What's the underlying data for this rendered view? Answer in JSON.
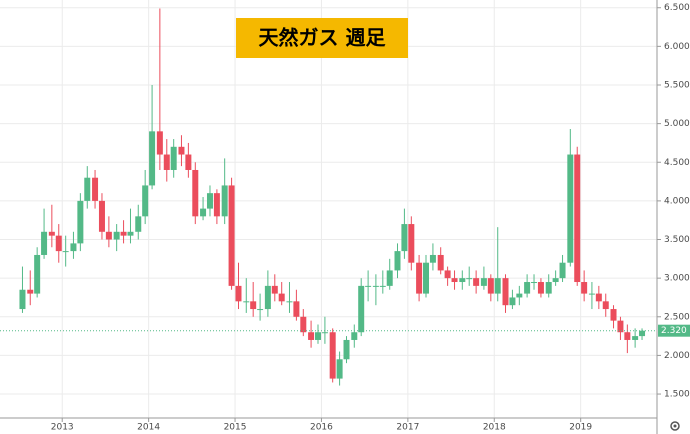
{
  "chart_data": {
    "type": "candlestick",
    "title": "天然ガス 週足",
    "x": [
      2012.54,
      2012.63,
      2012.71,
      2012.79,
      2012.88,
      2012.96,
      2013.04,
      2013.13,
      2013.21,
      2013.29,
      2013.38,
      2013.46,
      2013.54,
      2013.63,
      2013.71,
      2013.79,
      2013.88,
      2013.96,
      2014.04,
      2014.13,
      2014.21,
      2014.29,
      2014.38,
      2014.46,
      2014.54,
      2014.63,
      2014.71,
      2014.79,
      2014.88,
      2014.96,
      2015.04,
      2015.13,
      2015.21,
      2015.29,
      2015.38,
      2015.46,
      2015.54,
      2015.63,
      2015.71,
      2015.79,
      2015.88,
      2015.96,
      2016.04,
      2016.13,
      2016.21,
      2016.29,
      2016.38,
      2016.46,
      2016.54,
      2016.63,
      2016.71,
      2016.79,
      2016.88,
      2016.96,
      2017.04,
      2017.13,
      2017.21,
      2017.29,
      2017.38,
      2017.46,
      2017.54,
      2017.63,
      2017.71,
      2017.79,
      2017.88,
      2017.96,
      2018.04,
      2018.13,
      2018.21,
      2018.29,
      2018.38,
      2018.46,
      2018.54,
      2018.63,
      2018.71,
      2018.79,
      2018.88,
      2018.96,
      2019.04,
      2019.13,
      2019.21,
      2019.29,
      2019.38,
      2019.46,
      2019.54,
      2019.63,
      2019.71
    ],
    "open": [
      2.6,
      2.85,
      2.8,
      3.3,
      3.6,
      3.55,
      3.35,
      3.35,
      3.45,
      4.0,
      4.3,
      4.0,
      3.6,
      3.5,
      3.6,
      3.55,
      3.6,
      3.8,
      4.2,
      4.9,
      4.6,
      4.4,
      4.7,
      4.6,
      4.4,
      3.8,
      3.9,
      4.1,
      3.8,
      4.2,
      2.9,
      2.7,
      2.7,
      2.6,
      2.6,
      2.9,
      2.8,
      2.7,
      2.7,
      2.5,
      2.3,
      2.2,
      2.3,
      2.3,
      1.7,
      1.95,
      2.2,
      2.3,
      2.9,
      2.9,
      2.9,
      2.9,
      3.1,
      3.35,
      3.7,
      3.2,
      2.8,
      3.2,
      3.3,
      3.1,
      3.0,
      2.95,
      3.0,
      3.0,
      2.9,
      3.0,
      2.8,
      3.0,
      2.65,
      2.75,
      2.8,
      2.95,
      2.95,
      2.8,
      2.95,
      3.0,
      3.2,
      4.6,
      2.95,
      2.8,
      2.8,
      2.7,
      2.6,
      2.45,
      2.3,
      2.2,
      2.25
    ],
    "high": [
      3.15,
      3.1,
      3.4,
      3.9,
      3.95,
      3.7,
      3.55,
      3.6,
      4.1,
      4.45,
      4.4,
      4.1,
      3.8,
      3.7,
      3.75,
      3.9,
      3.95,
      4.4,
      5.5,
      6.49,
      4.8,
      4.8,
      4.85,
      4.75,
      4.5,
      4.05,
      4.2,
      4.15,
      4.55,
      4.3,
      3.2,
      3.0,
      2.95,
      2.8,
      3.1,
      3.05,
      2.95,
      2.95,
      2.85,
      2.6,
      2.45,
      2.4,
      2.5,
      2.35,
      2.05,
      2.25,
      2.4,
      3.0,
      3.1,
      3.05,
      3.1,
      3.25,
      3.45,
      3.9,
      3.8,
      3.3,
      3.3,
      3.45,
      3.4,
      3.15,
      3.1,
      3.1,
      3.15,
      3.1,
      3.15,
      3.05,
      3.66,
      3.05,
      2.85,
      2.9,
      3.05,
      3.05,
      3.0,
      3.05,
      3.1,
      3.3,
      4.93,
      4.7,
      3.1,
      2.95,
      2.9,
      2.8,
      2.65,
      2.5,
      2.4,
      2.35,
      2.35
    ],
    "low": [
      2.55,
      2.65,
      2.75,
      3.25,
      3.4,
      3.2,
      3.15,
      3.25,
      3.35,
      3.9,
      3.9,
      3.5,
      3.4,
      3.35,
      3.45,
      3.45,
      3.5,
      3.7,
      4.15,
      4.4,
      4.25,
      4.3,
      4.45,
      4.3,
      3.7,
      3.75,
      3.8,
      3.7,
      3.7,
      2.85,
      2.6,
      2.55,
      2.5,
      2.45,
      2.5,
      2.7,
      2.65,
      2.55,
      2.45,
      2.25,
      2.1,
      2.15,
      2.15,
      1.65,
      1.61,
      1.9,
      2.1,
      2.25,
      2.7,
      2.65,
      2.8,
      2.85,
      3.0,
      3.25,
      3.1,
      2.7,
      2.75,
      3.1,
      3.05,
      2.9,
      2.85,
      2.85,
      2.9,
      2.8,
      2.85,
      2.7,
      2.7,
      2.55,
      2.6,
      2.65,
      2.75,
      2.85,
      2.75,
      2.75,
      2.9,
      2.95,
      3.15,
      2.9,
      2.7,
      2.6,
      2.6,
      2.5,
      2.35,
      2.2,
      2.03,
      2.1,
      2.2
    ],
    "close": [
      2.85,
      2.8,
      3.3,
      3.6,
      3.55,
      3.35,
      3.35,
      3.45,
      4.0,
      4.3,
      4.0,
      3.6,
      3.5,
      3.6,
      3.55,
      3.6,
      3.8,
      4.2,
      4.9,
      4.6,
      4.4,
      4.7,
      4.6,
      4.4,
      3.8,
      3.9,
      4.1,
      3.8,
      4.2,
      2.9,
      2.7,
      2.7,
      2.6,
      2.6,
      2.9,
      2.8,
      2.7,
      2.7,
      2.5,
      2.3,
      2.2,
      2.3,
      2.3,
      1.7,
      1.95,
      2.2,
      2.3,
      2.9,
      2.9,
      2.9,
      2.9,
      3.1,
      3.35,
      3.7,
      3.2,
      2.8,
      3.2,
      3.3,
      3.1,
      3.0,
      2.95,
      3.0,
      3.0,
      2.9,
      3.0,
      2.8,
      3.0,
      2.65,
      2.75,
      2.8,
      2.95,
      2.95,
      2.8,
      2.95,
      3.0,
      3.2,
      4.6,
      2.95,
      2.8,
      2.8,
      2.7,
      2.6,
      2.45,
      2.3,
      2.2,
      2.25,
      2.32
    ],
    "up_color": "#53b987",
    "down_color": "#eb4d5c",
    "xlim": [
      2012.28,
      2019.86
    ],
    "xticks": [
      2013,
      2014,
      2015,
      2016,
      2017,
      2018,
      2019
    ],
    "ylim": [
      1.19,
      6.6
    ],
    "yticks": [
      {
        "value": 1.5,
        "label": "1.500"
      },
      {
        "value": 2.0,
        "label": "2.000"
      },
      {
        "value": 2.5,
        "label": "2.500"
      },
      {
        "value": 3.0,
        "label": "3.000"
      },
      {
        "value": 3.5,
        "label": "3.500"
      },
      {
        "value": 4.0,
        "label": "4.000"
      },
      {
        "value": 4.5,
        "label": "4.500"
      },
      {
        "value": 5.0,
        "label": "5.000"
      },
      {
        "value": 5.5,
        "label": "5.500"
      },
      {
        "value": 6.0,
        "label": "6.000"
      },
      {
        "value": 6.5,
        "label": "6.500"
      }
    ],
    "price_line": {
      "value": 2.32,
      "label": "2.320"
    },
    "grid": true
  }
}
